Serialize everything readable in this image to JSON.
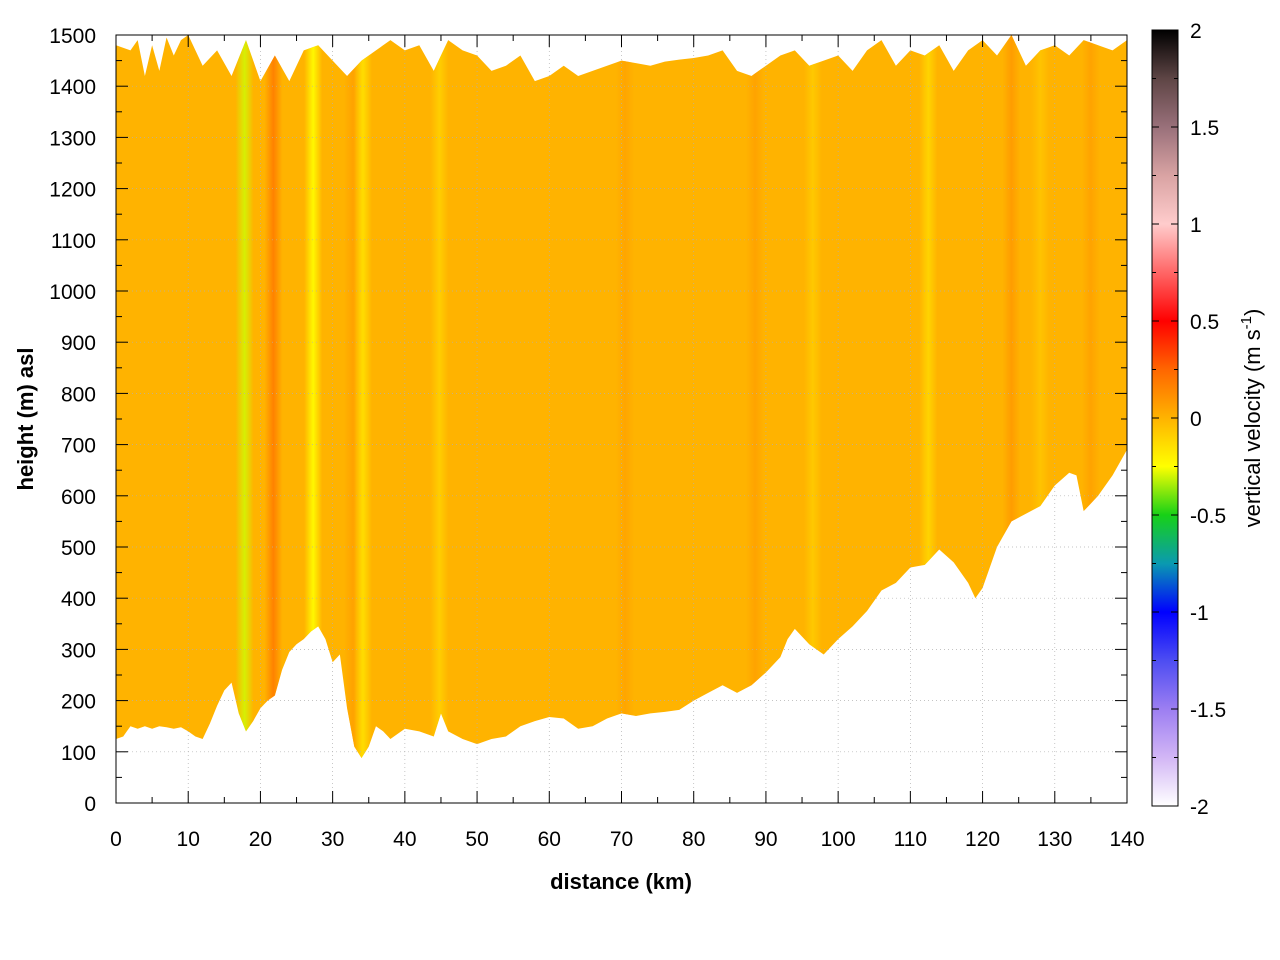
{
  "chart_data": {
    "type": "heatmap",
    "title": "",
    "xlabel": "distance (km)",
    "ylabel": "height (m) asl",
    "xlim": [
      0,
      140
    ],
    "ylim": [
      0,
      1500
    ],
    "x_ticks": [
      0,
      10,
      20,
      30,
      40,
      50,
      60,
      70,
      80,
      90,
      100,
      110,
      120,
      130,
      140
    ],
    "y_ticks": [
      0,
      100,
      200,
      300,
      400,
      500,
      600,
      700,
      800,
      900,
      1000,
      1100,
      1200,
      1300,
      1400,
      1500
    ],
    "x_tick_labels": [
      "0",
      "10",
      "20",
      "30",
      "40",
      "50",
      "60",
      "70",
      "80",
      "90",
      "100",
      "110",
      "120",
      "130",
      "140"
    ],
    "y_tick_labels": [
      "0",
      "100",
      "200",
      "300",
      "400",
      "500",
      "600",
      "700",
      "800",
      "900",
      "1000",
      "1100",
      "1200",
      "1300",
      "1400",
      "1500"
    ],
    "grid": true,
    "colorbar": {
      "label": "vertical velocity (m s",
      "label_superscript": "-1",
      "label_suffix": ")",
      "range": [
        -2,
        2
      ],
      "ticks": [
        2,
        1.5,
        1,
        0.5,
        0,
        -0.5,
        -1,
        -1.5,
        -2
      ],
      "tick_labels": [
        "2",
        "1.5",
        "1",
        "0.5",
        "0",
        "-0.5",
        "-1",
        "-1.5",
        "-2"
      ],
      "stops": [
        {
          "value": -2,
          "color": "#ffffff"
        },
        {
          "value": -1.75,
          "color": "#d2b6f5"
        },
        {
          "value": -1.5,
          "color": "#9c7ef2"
        },
        {
          "value": -1.25,
          "color": "#4d4df2"
        },
        {
          "value": -1.0,
          "color": "#0000ff"
        },
        {
          "value": -0.75,
          "color": "#0a9ab0"
        },
        {
          "value": -0.5,
          "color": "#17d117"
        },
        {
          "value": -0.25,
          "color": "#ffff00"
        },
        {
          "value": 0.0,
          "color": "#ffb300"
        },
        {
          "value": 0.25,
          "color": "#ff6600"
        },
        {
          "value": 0.5,
          "color": "#ff0000"
        },
        {
          "value": 0.75,
          "color": "#ff6666"
        },
        {
          "value": 1.0,
          "color": "#ffcccc"
        },
        {
          "value": 1.25,
          "color": "#d9a3a3"
        },
        {
          "value": 1.5,
          "color": "#99707a"
        },
        {
          "value": 1.75,
          "color": "#5e4545"
        },
        {
          "value": 2.0,
          "color": "#000000"
        }
      ]
    },
    "field_base_value": 0.0,
    "field_base_color": "#ffb300",
    "lower_boundary": {
      "x": [
        0,
        1,
        2,
        3,
        4,
        5,
        6,
        7,
        8,
        9,
        10,
        11,
        12,
        13,
        14,
        15,
        16,
        17,
        18,
        19,
        20,
        21,
        22,
        23,
        24,
        25,
        26,
        27,
        28,
        29,
        30,
        31,
        32,
        33,
        34,
        35,
        36,
        37,
        38,
        40,
        42,
        44,
        45,
        46,
        48,
        50,
        52,
        54,
        56,
        58,
        60,
        62,
        64,
        66,
        68,
        70,
        72,
        74,
        76,
        78,
        80,
        82,
        84,
        86,
        88,
        90,
        92,
        93,
        94,
        96,
        98,
        100,
        102,
        104,
        106,
        108,
        110,
        112,
        114,
        116,
        118,
        119,
        120,
        122,
        124,
        126,
        128,
        130,
        132,
        133,
        134,
        136,
        138,
        140
      ],
      "height": [
        125,
        130,
        150,
        145,
        150,
        145,
        150,
        148,
        145,
        148,
        140,
        130,
        125,
        155,
        190,
        220,
        235,
        175,
        140,
        160,
        185,
        200,
        210,
        260,
        295,
        310,
        320,
        335,
        345,
        320,
        275,
        290,
        185,
        110,
        88,
        110,
        150,
        140,
        125,
        145,
        140,
        130,
        175,
        140,
        125,
        115,
        125,
        130,
        150,
        160,
        168,
        165,
        145,
        150,
        165,
        175,
        170,
        175,
        178,
        182,
        200,
        215,
        230,
        215,
        230,
        255,
        285,
        320,
        340,
        310,
        290,
        320,
        345,
        375,
        415,
        430,
        460,
        465,
        495,
        470,
        430,
        400,
        420,
        500,
        550,
        565,
        580,
        620,
        645,
        640,
        570,
        600,
        640,
        690
      ]
    },
    "upper_boundary": {
      "x": [
        0,
        2,
        3,
        4,
        5,
        6,
        7,
        8,
        9,
        10,
        12,
        14,
        16,
        18,
        20,
        22,
        24,
        26,
        28,
        30,
        32,
        34,
        36,
        38,
        40,
        42,
        44,
        46,
        48,
        50,
        52,
        54,
        56,
        58,
        60,
        62,
        64,
        66,
        68,
        70,
        72,
        74,
        76,
        78,
        80,
        82,
        84,
        86,
        88,
        90,
        92,
        94,
        96,
        98,
        100,
        102,
        104,
        106,
        108,
        110,
        112,
        114,
        116,
        118,
        120,
        122,
        124,
        126,
        128,
        130,
        132,
        134,
        136,
        138,
        140
      ],
      "height": [
        1480,
        1470,
        1490,
        1420,
        1480,
        1430,
        1495,
        1460,
        1490,
        1500,
        1440,
        1470,
        1420,
        1490,
        1410,
        1460,
        1410,
        1470,
        1480,
        1450,
        1420,
        1450,
        1470,
        1490,
        1470,
        1480,
        1430,
        1490,
        1470,
        1460,
        1430,
        1440,
        1460,
        1410,
        1420,
        1440,
        1420,
        1430,
        1440,
        1450,
        1445,
        1440,
        1448,
        1452,
        1455,
        1460,
        1470,
        1430,
        1420,
        1440,
        1460,
        1470,
        1440,
        1450,
        1460,
        1430,
        1470,
        1490,
        1440,
        1470,
        1460,
        1480,
        1430,
        1470,
        1490,
        1460,
        1500,
        1440,
        1470,
        1480,
        1460,
        1490,
        1480,
        1470,
        1490
      ]
    },
    "features": [
      {
        "x": 17.8,
        "value": -0.3
      },
      {
        "x": 21.8,
        "value": 0.18
      },
      {
        "x": 27.3,
        "value": -0.25
      },
      {
        "x": 32.8,
        "value": 0.06
      },
      {
        "x": 34.2,
        "value": -0.15
      },
      {
        "x": 44.8,
        "value": -0.1
      },
      {
        "x": 70.5,
        "value": 0.05
      },
      {
        "x": 88.5,
        "value": 0.06
      },
      {
        "x": 96.5,
        "value": -0.08
      },
      {
        "x": 112.5,
        "value": -0.12
      },
      {
        "x": 124.0,
        "value": 0.08
      },
      {
        "x": 128.0,
        "value": -0.06
      },
      {
        "x": 135.0,
        "value": 0.06
      }
    ]
  }
}
